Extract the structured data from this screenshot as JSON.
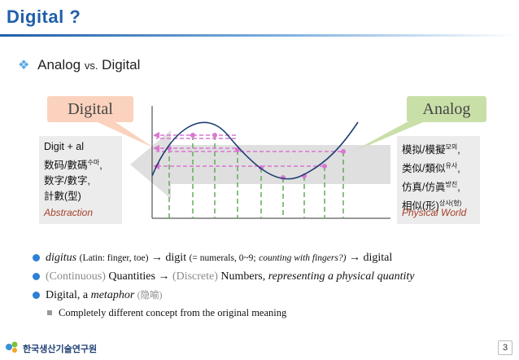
{
  "slide": {
    "title": "Digital ?",
    "subtitle_a": "Analog",
    "subtitle_vs": "vs.",
    "subtitle_b": "Digital",
    "page_number": "3"
  },
  "tags": {
    "digital": "Digital",
    "analog": "Analog"
  },
  "left_box": {
    "line1": "Digit + al",
    "line2_main": "数码/數碼",
    "line2_sup": "수마",
    "line2_end": ",",
    "line3": "数字/數字,",
    "line4": "計數(型)",
    "caption": "Abstraction"
  },
  "right_box": {
    "line1_main": "模拟/模擬",
    "line1_sup": "모의",
    "line1_end": ",",
    "line2_main": "类似/類似",
    "line2_sup": "유사",
    "line2_end": ",",
    "line3_main": "仿真/仿眞",
    "line3_sup": "방진",
    "line3_end": ",",
    "line4_main": "相似(形)",
    "line4_sup": "상사(형)",
    "caption": "Physical World"
  },
  "bullets": {
    "b1_italic": "digitus",
    "b1_paren": "(Latin: finger, toe)",
    "b1_arrow1": "→ digit",
    "b1_paren2a": "(= numerals, 0~9;",
    "b1_paren2b": "counting with fingers?)",
    "b1_arrow2": "→ digital",
    "b2_cont": "(Continuous)",
    "b2_q": "Quantities →",
    "b2_disc": "(Discrete)",
    "b2_n": "Numbers,",
    "b2_it": "representing a physical quantity",
    "b3_a": "Digital, a",
    "b3_it": "metaphor",
    "b3_gray": "(隐喻)",
    "sub1": "Completely different concept from the original meaning"
  },
  "footer": {
    "org": "한국생산기술연구원"
  },
  "colors": {
    "title_blue": "#1f5fa8",
    "digital_tag": "#fbd2be",
    "analog_tag": "#c9dfa8",
    "curve": "#1f3f73",
    "arrows": "#d977d2",
    "samples": "#5fae55"
  }
}
